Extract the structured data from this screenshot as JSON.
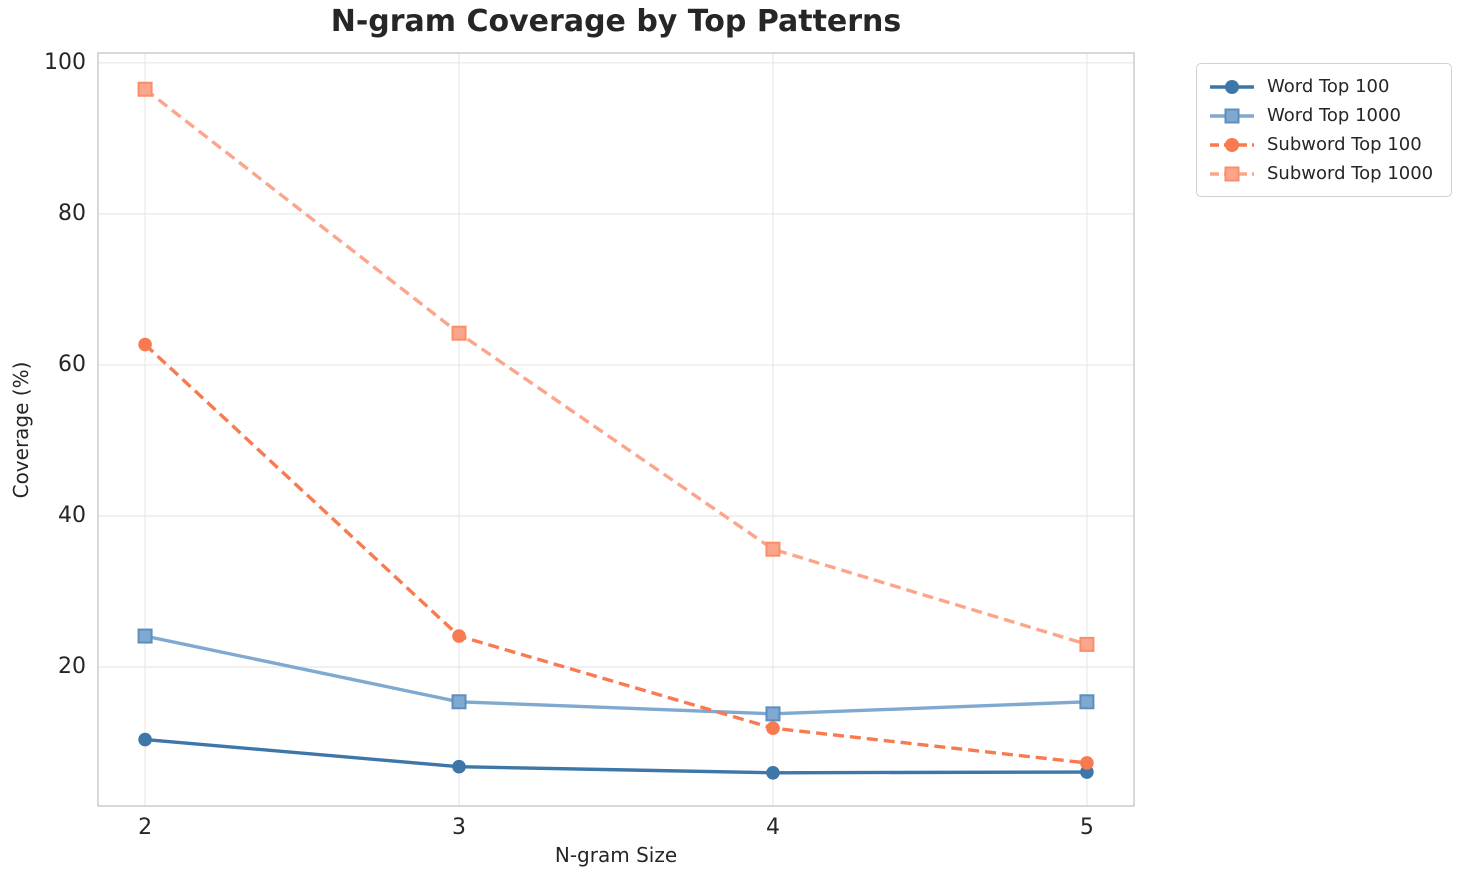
{
  "chart_data": {
    "type": "line",
    "title": "N-gram Coverage by Top Patterns",
    "xlabel": "N-gram Size",
    "ylabel": "Coverage (%)",
    "x": [
      2,
      3,
      4,
      5
    ],
    "x_ticks": [
      "2",
      "3",
      "4",
      "5"
    ],
    "y_ticks": [
      20,
      40,
      60,
      80,
      100
    ],
    "y_tick_labels": [
      "20",
      "40",
      "60",
      "80",
      "100"
    ],
    "xlim": [
      1.85,
      5.15
    ],
    "ylim": [
      1.6,
      101.3
    ],
    "grid": true,
    "legend_position": "upper right outside plot",
    "series": [
      {
        "name": "Word Top 100",
        "values": [
          10.4,
          6.8,
          6.0,
          6.1
        ],
        "color": "#3d76a8",
        "line_style": "solid",
        "marker": "circle"
      },
      {
        "name": "Word Top 1000",
        "values": [
          24.1,
          15.4,
          13.8,
          15.4
        ],
        "color": "#7fa9d0",
        "line_style": "solid",
        "marker": "square",
        "marker_edge": "#5d8fbe"
      },
      {
        "name": "Subword Top 100",
        "values": [
          62.7,
          24.1,
          11.9,
          7.3
        ],
        "color": "#f87a50",
        "line_style": "dashed",
        "marker": "circle"
      },
      {
        "name": "Subword Top 1000",
        "values": [
          96.5,
          64.2,
          35.6,
          23.0
        ],
        "color": "#fba68c",
        "line_style": "dashed",
        "marker": "square",
        "marker_edge": "#f98e68"
      }
    ],
    "colors": {
      "text": "#262626",
      "grid": "#e8e8e8",
      "spine": "#cccccc",
      "background": "#ffffff"
    }
  }
}
